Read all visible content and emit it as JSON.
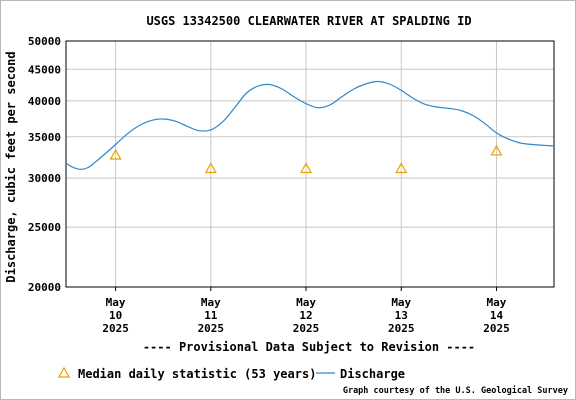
{
  "chart_data": {
    "type": "line",
    "title": "USGS 13342500 CLEARWATER RIVER AT SPALDING ID",
    "ylabel": "Discharge, cubic feet per second",
    "xlabel": "",
    "y_scale": "log",
    "ylim": [
      20000,
      50000
    ],
    "y_ticks": [
      20000,
      25000,
      30000,
      35000,
      40000,
      45000,
      50000
    ],
    "y_tick_labels": [
      "20000",
      "25000",
      "30000",
      "35000",
      "40000",
      "45000",
      "50000"
    ],
    "x_range": [
      "2025-05-09T11:30",
      "2025-05-14T14:30"
    ],
    "x_ticks": [
      {
        "date": "2025-05-10",
        "month": "May",
        "day": "10",
        "year": "2025"
      },
      {
        "date": "2025-05-11",
        "month": "May",
        "day": "11",
        "year": "2025"
      },
      {
        "date": "2025-05-12",
        "month": "May",
        "day": "12",
        "year": "2025"
      },
      {
        "date": "2025-05-13",
        "month": "May",
        "day": "13",
        "year": "2025"
      },
      {
        "date": "2025-05-14",
        "month": "May",
        "day": "14",
        "year": "2025"
      }
    ],
    "grid": true,
    "legend_position": "bottom",
    "notice": "---- Provisional Data Subject to Revision ----",
    "credit": "Graph courtesy of the U.S. Geological Survey",
    "colors": {
      "discharge": "#2b8ac9",
      "median": "#e8a200",
      "notice": "#e00000",
      "grid": "#c8c8c8"
    },
    "series": [
      {
        "name": "Discharge",
        "kind": "line",
        "points": [
          {
            "x": "2025-05-09T11:30",
            "y": 31700
          },
          {
            "x": "2025-05-09T13:00",
            "y": 31300
          },
          {
            "x": "2025-05-09T15:00",
            "y": 31000
          },
          {
            "x": "2025-05-09T17:00",
            "y": 31200
          },
          {
            "x": "2025-05-09T19:00",
            "y": 31900
          },
          {
            "x": "2025-05-09T21:00",
            "y": 32700
          },
          {
            "x": "2025-05-10T00:00",
            "y": 34000
          },
          {
            "x": "2025-05-10T03:00",
            "y": 35400
          },
          {
            "x": "2025-05-10T06:00",
            "y": 36500
          },
          {
            "x": "2025-05-10T09:00",
            "y": 37200
          },
          {
            "x": "2025-05-10T12:00",
            "y": 37400
          },
          {
            "x": "2025-05-10T15:00",
            "y": 37100
          },
          {
            "x": "2025-05-10T18:00",
            "y": 36400
          },
          {
            "x": "2025-05-10T21:00",
            "y": 35800
          },
          {
            "x": "2025-05-11T00:00",
            "y": 35900
          },
          {
            "x": "2025-05-11T03:00",
            "y": 37000
          },
          {
            "x": "2025-05-11T06:00",
            "y": 39000
          },
          {
            "x": "2025-05-11T09:00",
            "y": 41200
          },
          {
            "x": "2025-05-11T12:00",
            "y": 42300
          },
          {
            "x": "2025-05-11T15:00",
            "y": 42500
          },
          {
            "x": "2025-05-11T18:00",
            "y": 41800
          },
          {
            "x": "2025-05-11T21:00",
            "y": 40600
          },
          {
            "x": "2025-05-12T00:00",
            "y": 39600
          },
          {
            "x": "2025-05-12T03:00",
            "y": 39000
          },
          {
            "x": "2025-05-12T06:00",
            "y": 39400
          },
          {
            "x": "2025-05-12T09:00",
            "y": 40600
          },
          {
            "x": "2025-05-12T12:00",
            "y": 41800
          },
          {
            "x": "2025-05-12T15:00",
            "y": 42600
          },
          {
            "x": "2025-05-12T18:00",
            "y": 43000
          },
          {
            "x": "2025-05-12T21:00",
            "y": 42600
          },
          {
            "x": "2025-05-13T00:00",
            "y": 41600
          },
          {
            "x": "2025-05-13T03:00",
            "y": 40400
          },
          {
            "x": "2025-05-13T06:00",
            "y": 39500
          },
          {
            "x": "2025-05-13T09:00",
            "y": 39100
          },
          {
            "x": "2025-05-13T12:00",
            "y": 38900
          },
          {
            "x": "2025-05-13T15:00",
            "y": 38600
          },
          {
            "x": "2025-05-13T18:00",
            "y": 37900
          },
          {
            "x": "2025-05-13T21:00",
            "y": 36800
          },
          {
            "x": "2025-05-14T00:00",
            "y": 35500
          },
          {
            "x": "2025-05-14T03:00",
            "y": 34700
          },
          {
            "x": "2025-05-14T06:00",
            "y": 34200
          },
          {
            "x": "2025-05-14T09:00",
            "y": 34000
          },
          {
            "x": "2025-05-14T12:00",
            "y": 33900
          },
          {
            "x": "2025-05-14T14:30",
            "y": 33800
          }
        ]
      },
      {
        "name": "Median daily statistic (53 years)",
        "kind": "marker",
        "points": [
          {
            "x": "2025-05-10T00:00",
            "y": 32700
          },
          {
            "x": "2025-05-11T00:00",
            "y": 31100
          },
          {
            "x": "2025-05-12T00:00",
            "y": 31100
          },
          {
            "x": "2025-05-13T00:00",
            "y": 31100
          },
          {
            "x": "2025-05-14T00:00",
            "y": 33200
          }
        ]
      }
    ]
  }
}
